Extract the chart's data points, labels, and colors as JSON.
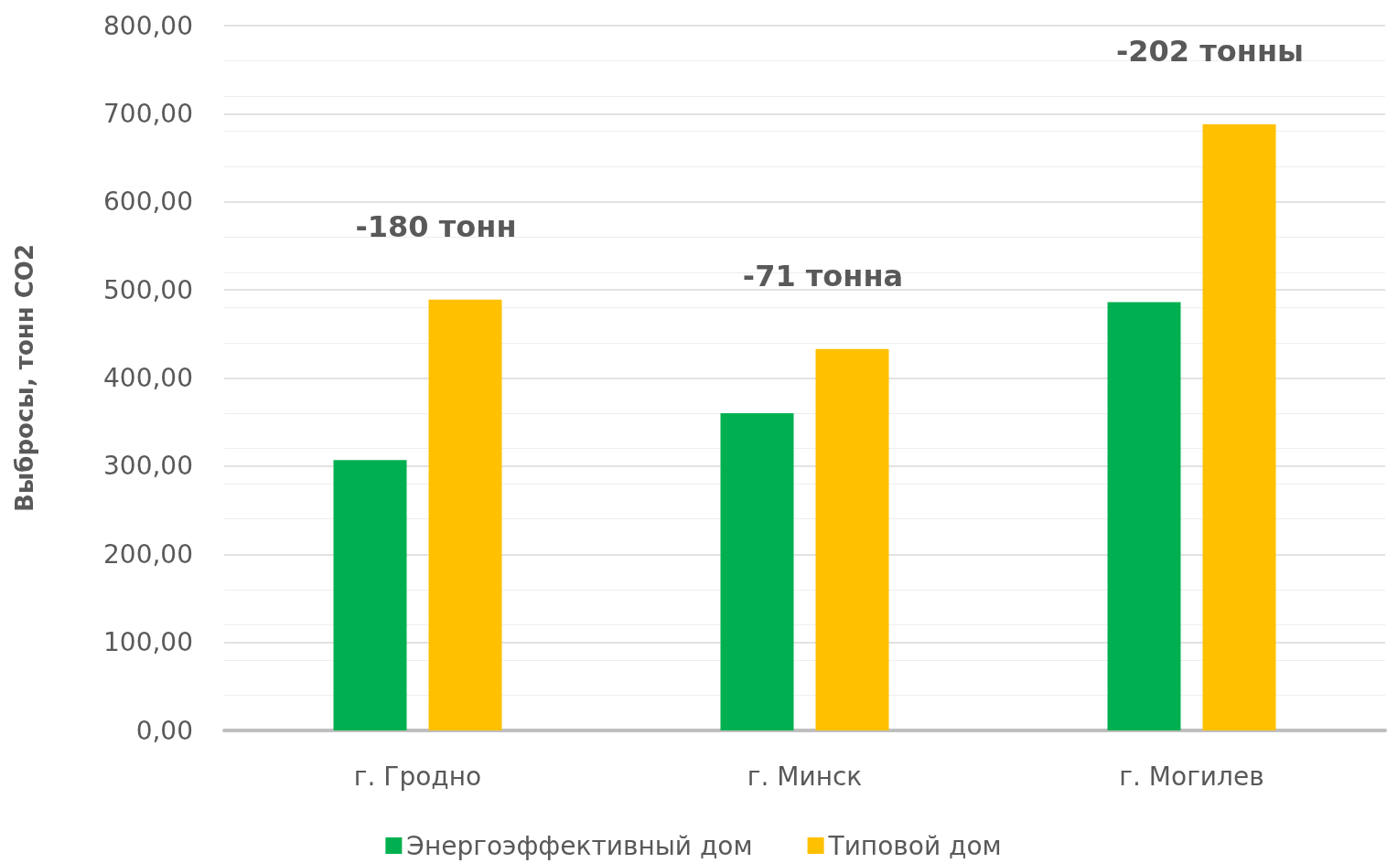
{
  "chart_data": {
    "type": "bar",
    "ylabel": "Выбросы, тонн CO2",
    "categories": [
      "г. Гродно",
      "г. Минск",
      "г. Могилев"
    ],
    "series": [
      {
        "name": "Энергоэффективный дом",
        "color": "#00b050",
        "values": [
          307,
          360,
          486
        ]
      },
      {
        "name": "Типовой дом",
        "color": "#ffc000",
        "values": [
          489,
          433,
          688
        ]
      }
    ],
    "ylim": [
      0,
      800
    ],
    "yticks": [
      {
        "value": 0,
        "label": "0,00"
      },
      {
        "value": 100,
        "label": "100,00"
      },
      {
        "value": 200,
        "label": "200,00"
      },
      {
        "value": 300,
        "label": "300,00"
      },
      {
        "value": 400,
        "label": "400,00"
      },
      {
        "value": 500,
        "label": "500,00"
      },
      {
        "value": 600,
        "label": "600,00"
      },
      {
        "value": 700,
        "label": "700,00"
      },
      {
        "value": 800,
        "label": "800,00"
      }
    ],
    "annotations": [
      "-180 тонн",
      "-71 тонна",
      "-202 тонны"
    ],
    "grid": "y",
    "legend": "bottom"
  }
}
